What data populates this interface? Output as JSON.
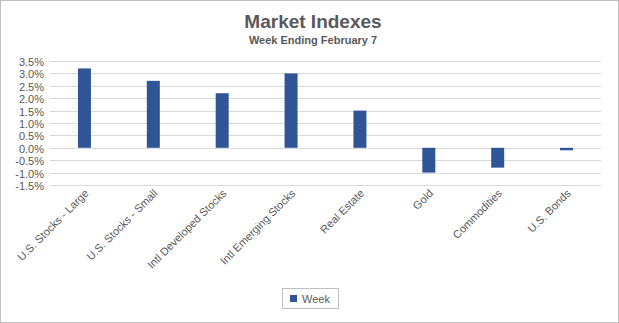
{
  "chart_data": {
    "type": "bar",
    "title": "Market Indexes",
    "subtitle": "Week Ending February 7",
    "categories": [
      "U.S. Stocks - Large",
      "U.S. Stocks - Small",
      "Intl Developed Stocks",
      "Intl Emerging Stocks",
      "Real Estate",
      "Gold",
      "Commodities",
      "U.S. Bonds"
    ],
    "series": [
      {
        "name": "Week",
        "color": "#2f5597",
        "values": [
          3.2,
          2.7,
          2.2,
          3.0,
          1.5,
          -1.0,
          -0.8,
          -0.1
        ]
      }
    ],
    "ylim": [
      -1.5,
      3.5
    ],
    "yticks": [
      {
        "value": -1.5,
        "label": "-1.5%"
      },
      {
        "value": -1.0,
        "label": "-1.0%"
      },
      {
        "value": -0.5,
        "label": "-0.5%"
      },
      {
        "value": 0,
        "label": "0.0%"
      },
      {
        "value": 0.5,
        "label": "0.5%"
      },
      {
        "value": 1.0,
        "label": "1.0%"
      },
      {
        "value": 1.5,
        "label": "1.5%"
      },
      {
        "value": 2.0,
        "label": "2.0%"
      },
      {
        "value": 2.5,
        "label": "2.5%"
      },
      {
        "value": 3.0,
        "label": "3.0%"
      },
      {
        "value": 3.5,
        "label": "3.5%"
      }
    ],
    "grid": true,
    "legend": "bottom"
  }
}
